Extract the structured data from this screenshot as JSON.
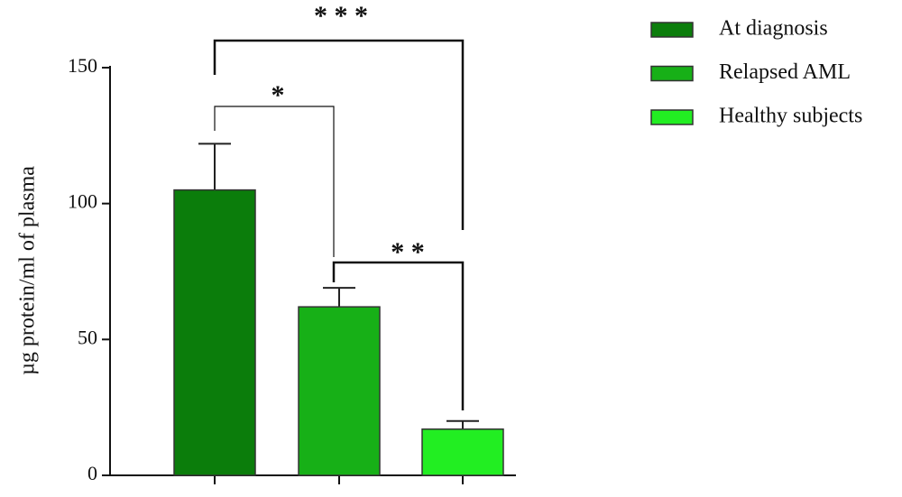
{
  "chart_data": {
    "type": "bar",
    "y_label": "µg protein/ml of plasma",
    "categories": [
      null
    ],
    "series": [
      {
        "name": "At diagnosis",
        "color": "#0b7d0b",
        "values": [
          105
        ],
        "errors": [
          17
        ]
      },
      {
        "name": "Relapsed AML",
        "color": "#17b017",
        "values": [
          62
        ],
        "errors": [
          7
        ]
      },
      {
        "name": "Healthy subjects",
        "color": "#22ee22",
        "values": [
          17
        ],
        "errors": [
          3
        ]
      }
    ],
    "ylim": [
      0,
      150
    ],
    "yticks": [
      0,
      50,
      100,
      150
    ],
    "annotations": [
      "* * *",
      "*",
      "* *"
    ]
  }
}
